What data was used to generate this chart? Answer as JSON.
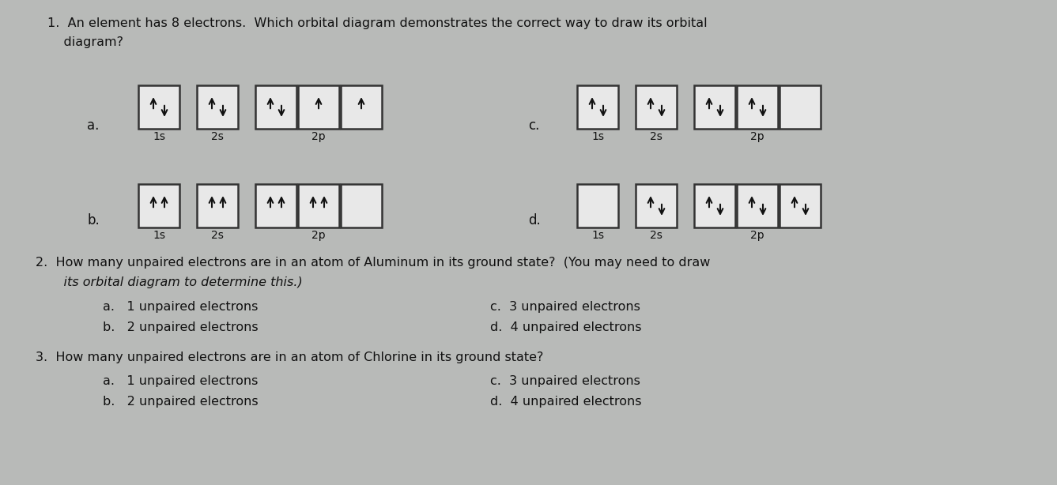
{
  "bg_color": "#b8bab8",
  "text_color": "#111111",
  "box_facecolor": "#e8e8e8",
  "box_edgecolor": "#333333",
  "arrow_color": "#111111",
  "q1_line1": "1.  An element has 8 electrons.  Which orbital diagram demonstrates the correct way to draw its orbital",
  "q1_line2": "    diagram?",
  "q2_line1": "2.  How many unpaired electrons are in an atom of Aluminum in its ground state?  (You may need to draw",
  "q2_line2": "    its orbital diagram to determine this.)",
  "q3_line1": "3.  How many unpaired electrons are in an atom of Chlorine in its ground state?",
  "choices_q2": {
    "a": "a.   1 unpaired electrons",
    "b": "b.   2 unpaired electrons",
    "c": "c.  3 unpaired electrons",
    "d": "d.  4 unpaired electrons"
  },
  "choices_q3": {
    "a": "a.   1 unpaired electrons",
    "b": "b.   2 unpaired electrons",
    "c": "c.  3 unpaired electrons",
    "d": "d.  4 unpaired electrons"
  },
  "diagram_a_label": "a.",
  "diagram_b_label": "b.",
  "diagram_c_label": "c.",
  "diagram_d_label": "d.",
  "diagrams": {
    "a": [
      {
        "label": "1s",
        "type": "up_down"
      },
      {
        "label": "2s",
        "type": "up_down"
      },
      {
        "label": null,
        "type": "up_down"
      },
      {
        "label": null,
        "type": "up_only"
      },
      {
        "label": null,
        "type": "up_only"
      }
    ],
    "b": [
      {
        "label": "1s",
        "type": "up_up"
      },
      {
        "label": "2s",
        "type": "up_up"
      },
      {
        "label": null,
        "type": "up_up"
      },
      {
        "label": null,
        "type": "up_up"
      },
      {
        "label": null,
        "type": "empty"
      }
    ],
    "c": [
      {
        "label": "1s",
        "type": "up_down"
      },
      {
        "label": "2s",
        "type": "up_down"
      },
      {
        "label": null,
        "type": "up_down"
      },
      {
        "label": null,
        "type": "up_down"
      },
      {
        "label": null,
        "type": "empty"
      }
    ],
    "d": [
      {
        "label": "1s",
        "type": "empty"
      },
      {
        "label": "2s",
        "type": "up_down"
      },
      {
        "label": null,
        "type": "up_down"
      },
      {
        "label": null,
        "type": "up_down"
      },
      {
        "label": null,
        "type": "up_down"
      }
    ]
  }
}
